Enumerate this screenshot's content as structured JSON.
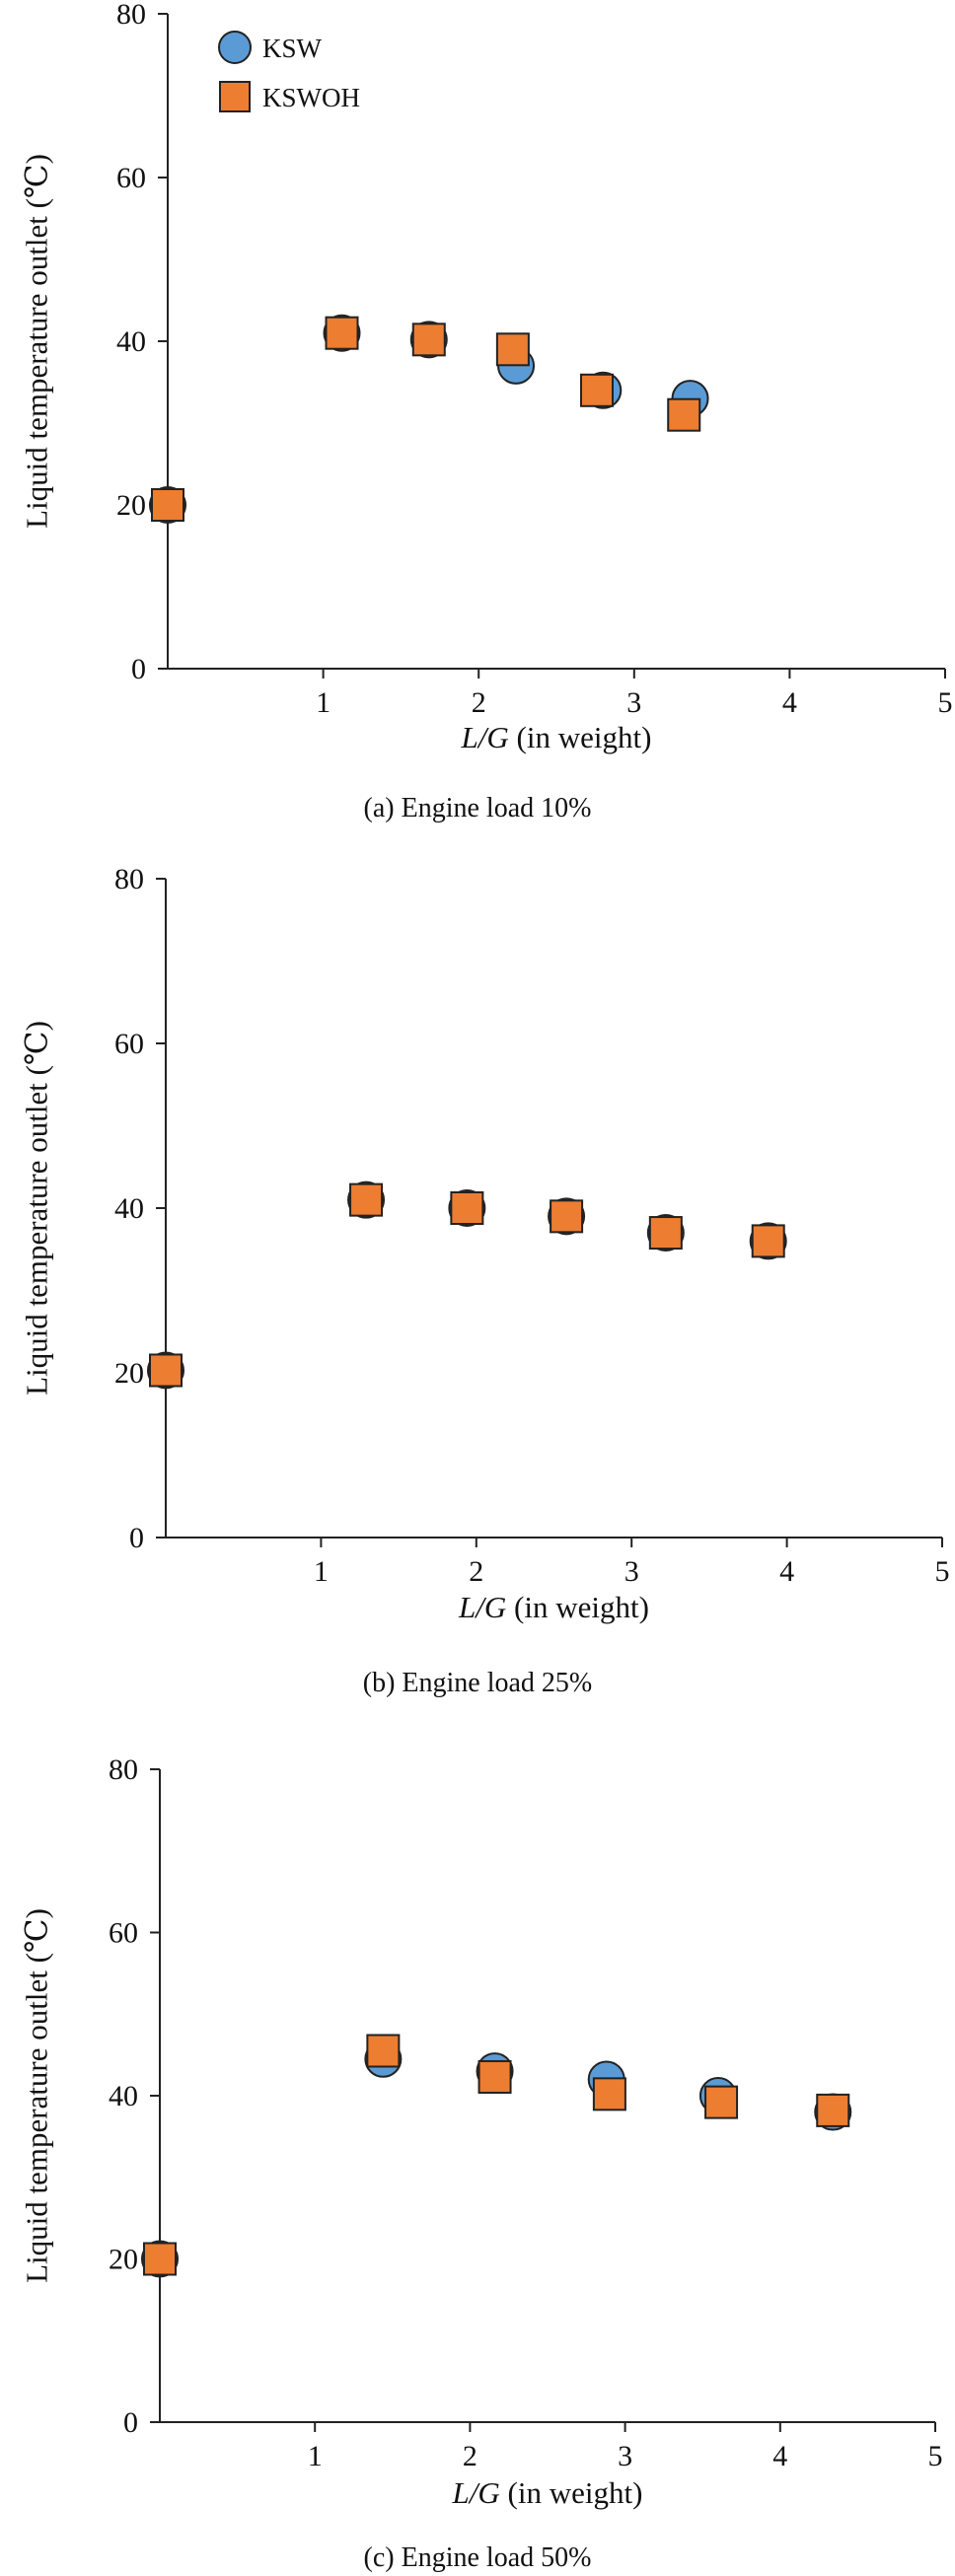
{
  "chart_data": [
    {
      "type": "scatter",
      "caption": "(a) Engine load 10%",
      "xlabel_italic": "L/G",
      "xlabel_rest": " (in weight)",
      "ylabel": "Liquid temperature outlet (℃)",
      "xlim": [
        0,
        5
      ],
      "ylim": [
        0,
        80
      ],
      "xticks": [
        "1",
        "2",
        "3",
        "4",
        "5"
      ],
      "yticks": [
        "0",
        "20",
        "40",
        "60",
        "80"
      ],
      "legend": {
        "show": true,
        "placement": "top-left"
      },
      "series": [
        {
          "name": "KSW",
          "marker": "circle",
          "color": "#5b9bd5",
          "points": [
            [
              0,
              20
            ],
            [
              1.12,
              41
            ],
            [
              1.68,
              40.2
            ],
            [
              2.24,
              37
            ],
            [
              2.8,
              34
            ],
            [
              3.36,
              33
            ]
          ]
        },
        {
          "name": "KSWOH",
          "marker": "square",
          "color": "#ed7d31",
          "points": [
            [
              0,
              20
            ],
            [
              1.12,
              41
            ],
            [
              1.68,
              40.2
            ],
            [
              2.22,
              39
            ],
            [
              2.76,
              34
            ],
            [
              3.32,
              31
            ]
          ]
        }
      ]
    },
    {
      "type": "scatter",
      "caption": "(b) Engine load 25%",
      "xlabel_italic": "L/G",
      "xlabel_rest": " (in weight)",
      "ylabel": "Liquid temperature outlet (℃)",
      "xlim": [
        0,
        5
      ],
      "ylim": [
        0,
        80
      ],
      "xticks": [
        "1",
        "2",
        "3",
        "4",
        "5"
      ],
      "yticks": [
        "0",
        "20",
        "40",
        "60",
        "80"
      ],
      "legend": {
        "show": false
      },
      "series": [
        {
          "name": "KSW",
          "marker": "circle",
          "color": "#5b9bd5",
          "points": [
            [
              0,
              20.3
            ],
            [
              1.29,
              41
            ],
            [
              1.94,
              40
            ],
            [
              2.58,
              39
            ],
            [
              3.22,
              37
            ],
            [
              3.88,
              36
            ]
          ]
        },
        {
          "name": "KSWOH",
          "marker": "square",
          "color": "#ed7d31",
          "points": [
            [
              0,
              20.3
            ],
            [
              1.29,
              41
            ],
            [
              1.94,
              40
            ],
            [
              2.58,
              39
            ],
            [
              3.22,
              37
            ],
            [
              3.88,
              36
            ]
          ]
        }
      ]
    },
    {
      "type": "scatter",
      "caption": "(c) Engine load 50%",
      "xlabel_italic": "L/G",
      "xlabel_rest": " (in weight)",
      "ylabel": "Liquid temperature outlet (℃)",
      "xlim": [
        0,
        5
      ],
      "ylim": [
        0,
        80
      ],
      "xticks": [
        "1",
        "2",
        "3",
        "4",
        "5"
      ],
      "yticks": [
        "0",
        "20",
        "40",
        "60",
        "80"
      ],
      "legend": {
        "show": false
      },
      "series": [
        {
          "name": "KSW",
          "marker": "circle",
          "color": "#5b9bd5",
          "points": [
            [
              0,
              20
            ],
            [
              1.44,
              44.5
            ],
            [
              2.16,
              43
            ],
            [
              2.88,
              42
            ],
            [
              3.6,
              40
            ],
            [
              4.34,
              38
            ]
          ]
        },
        {
          "name": "KSWOH",
          "marker": "square",
          "color": "#ed7d31",
          "points": [
            [
              0,
              20
            ],
            [
              1.44,
              45.5
            ],
            [
              2.16,
              42.3
            ],
            [
              2.9,
              40.2
            ],
            [
              3.62,
              39.2
            ],
            [
              4.34,
              38.2
            ]
          ]
        }
      ]
    }
  ]
}
